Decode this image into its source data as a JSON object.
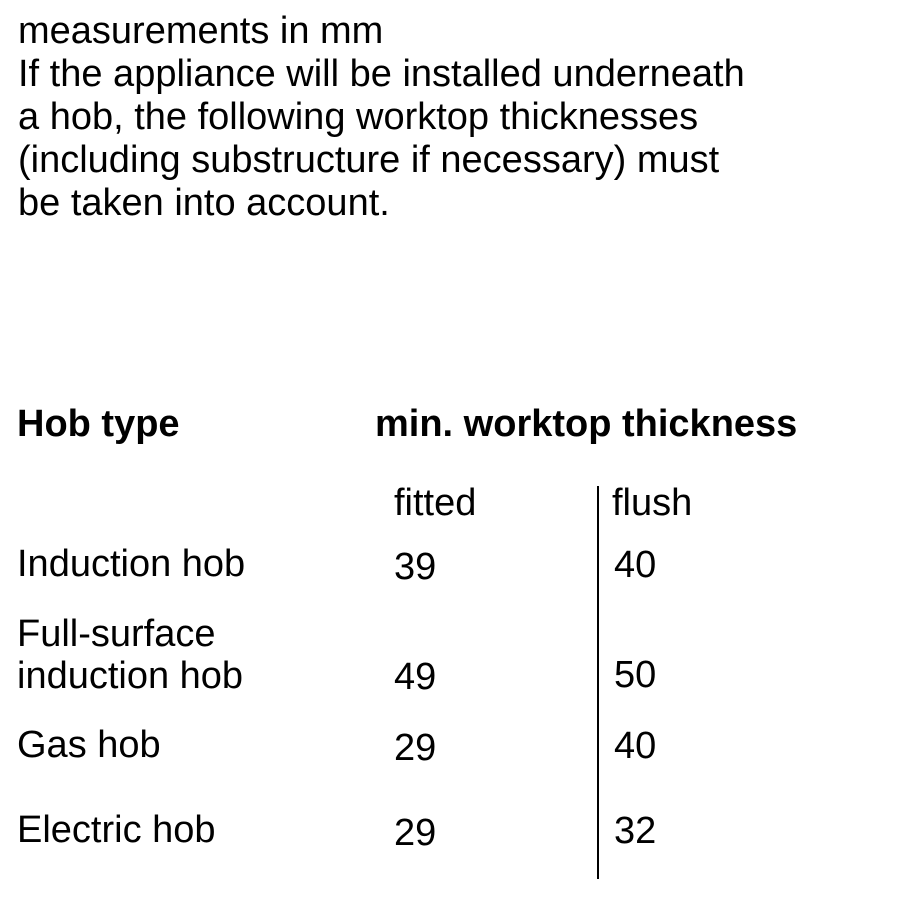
{
  "intro": {
    "units": "measurements in mm",
    "lines": [
      "If the appliance will be installed underneath",
      "a hob, the following worktop thicknesses",
      "(including substructure if necessary) must",
      "be taken into account."
    ]
  },
  "table": {
    "header_hob_type": "Hob type",
    "header_thickness": "min. worktop thickness",
    "sub_fitted": "fitted",
    "sub_flush": "flush",
    "rows": [
      {
        "label": [
          "Induction hob"
        ],
        "fitted": "39",
        "flush": "40"
      },
      {
        "label": [
          "Full-surface",
          "induction hob"
        ],
        "fitted": "49",
        "flush": "50"
      },
      {
        "label": [
          "Gas hob"
        ],
        "fitted": "29",
        "flush": "40"
      },
      {
        "label": [
          "Electric hob"
        ],
        "fitted": "29",
        "flush": "32"
      }
    ]
  }
}
